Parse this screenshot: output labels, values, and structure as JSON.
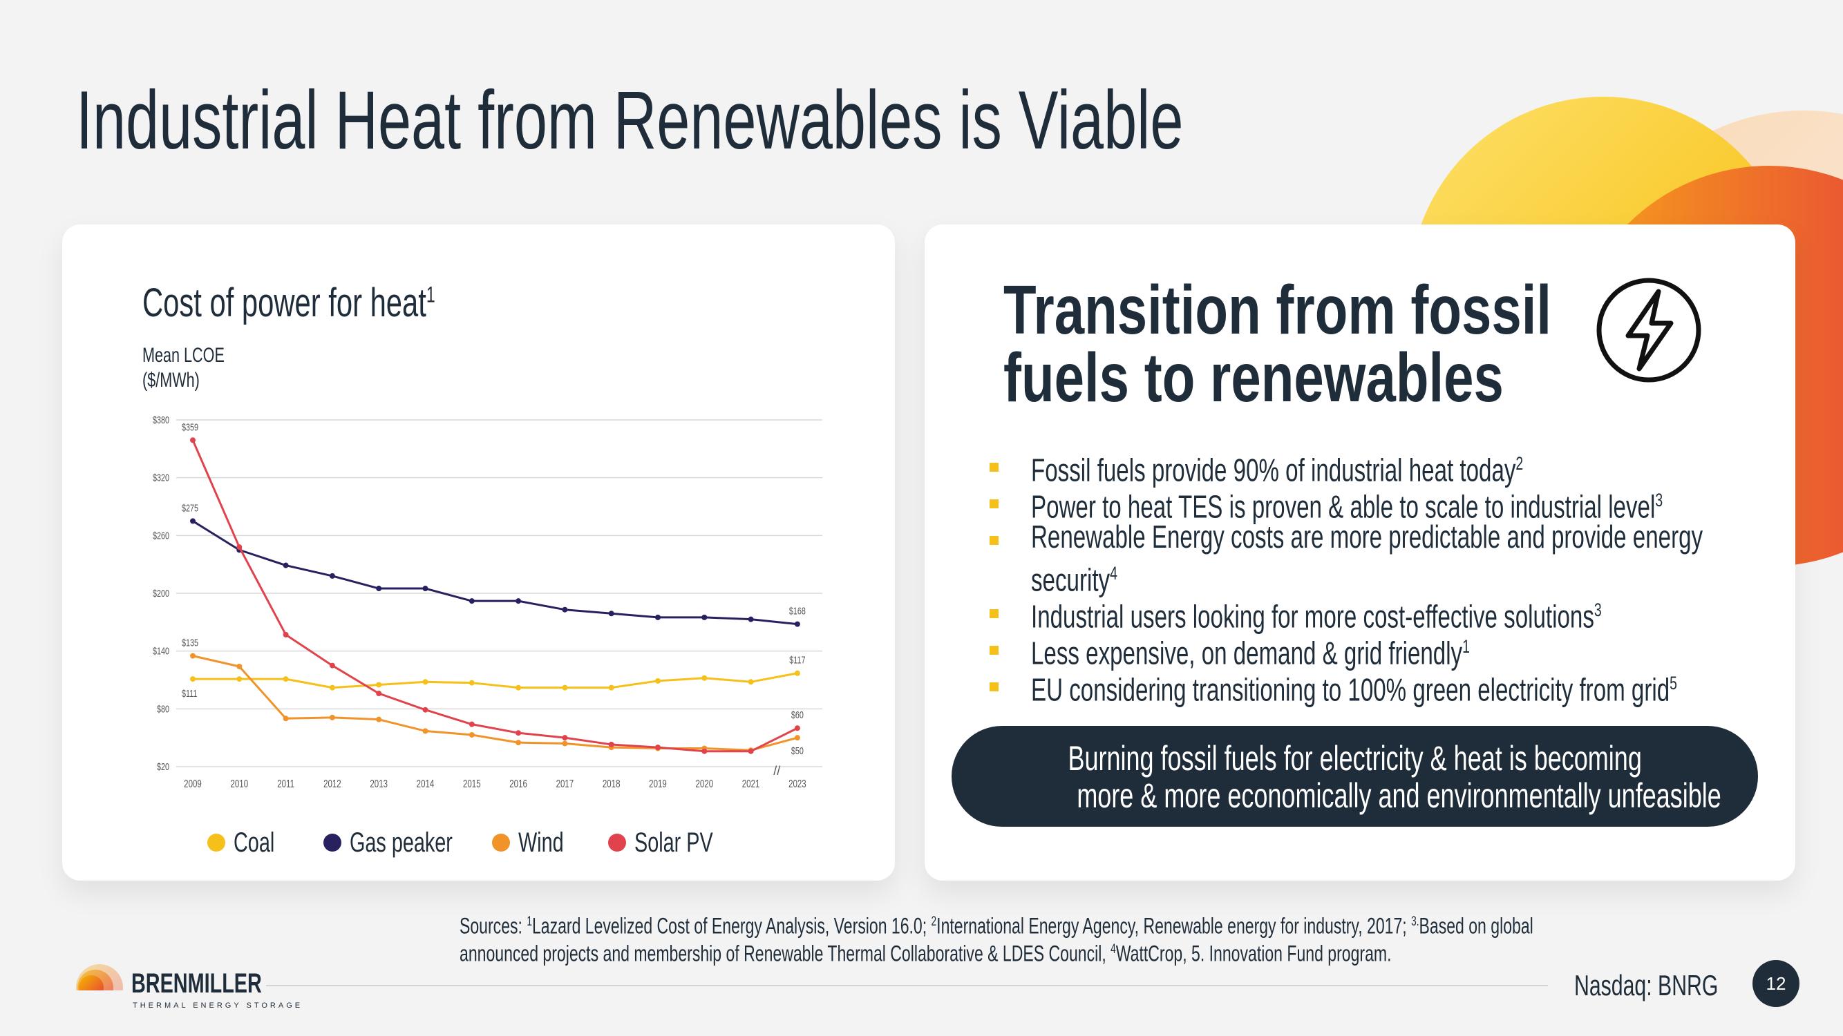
{
  "slide": {
    "title": "Industrial Heat from Renewables is Viable",
    "page_number": "12",
    "ticker": "Nasdaq: BNRG"
  },
  "left_card": {
    "chart_title": "Cost of power for heat",
    "chart_title_sup": "1",
    "ylabel_line1": "Mean LCOE",
    "ylabel_line2": "($/MWh)"
  },
  "chart_data": {
    "type": "line",
    "title": "Cost of power for heat",
    "ylabel": "Mean LCOE ($/MWh)",
    "xlabel": "",
    "ylim": [
      20,
      380
    ],
    "y_ticks": [
      "$380",
      "$320",
      "$260",
      "$200",
      "$140",
      "$80",
      "$20"
    ],
    "y_tick_values": [
      380,
      320,
      260,
      200,
      140,
      80,
      20
    ],
    "categories": [
      "2009",
      "2010",
      "2011",
      "2012",
      "2013",
      "2014",
      "2015",
      "2016",
      "2017",
      "2018",
      "2019",
      "2020",
      "2021",
      "2023"
    ],
    "axis_break_label": "//",
    "grid": true,
    "legend_position": "bottom",
    "series": [
      {
        "name": "Coal",
        "color": "#f5c01a",
        "values": [
          111,
          111,
          111,
          102,
          105,
          108,
          107,
          102,
          102,
          102,
          109,
          112,
          108,
          117
        ]
      },
      {
        "name": "Gas peaker",
        "color": "#27215f",
        "values": [
          275,
          245,
          229,
          218,
          205,
          205,
          192,
          192,
          183,
          179,
          175,
          175,
          173,
          168
        ]
      },
      {
        "name": "Wind",
        "color": "#f0932b",
        "values": [
          135,
          124,
          70,
          71,
          69,
          57,
          53,
          45,
          44,
          40,
          39,
          39,
          37,
          50
        ]
      },
      {
        "name": "Solar PV",
        "color": "#e0434b",
        "values": [
          359,
          248,
          157,
          125,
          96,
          79,
          64,
          55,
          50,
          43,
          40,
          36,
          36,
          60
        ]
      }
    ],
    "data_labels": [
      {
        "text": "$359",
        "series": "Solar PV",
        "category": "2009",
        "value": 359
      },
      {
        "text": "$275",
        "series": "Gas peaker",
        "category": "2009",
        "value": 275
      },
      {
        "text": "$135",
        "series": "Wind",
        "category": "2009",
        "value": 135
      },
      {
        "text": "$111",
        "series": "Coal",
        "category": "2009",
        "value": 111
      },
      {
        "text": "$168",
        "series": "Gas peaker",
        "category": "2023",
        "value": 168
      },
      {
        "text": "$117",
        "series": "Coal",
        "category": "2023",
        "value": 117
      },
      {
        "text": "$60",
        "series": "Solar PV",
        "category": "2023",
        "value": 60
      },
      {
        "text": "$50",
        "series": "Wind",
        "category": "2023",
        "value": 50
      }
    ]
  },
  "right_card": {
    "title_line1": "Transition from fossil",
    "title_line2": "fuels to renewables",
    "icon": "lightning-bolt-icon",
    "bullets": [
      {
        "lines": [
          "Fossil fuels provide 90% of industrial heat today"
        ],
        "sup": "2"
      },
      {
        "lines": [
          "Power to heat TES is proven & able to scale to industrial level"
        ],
        "sup": "3"
      },
      {
        "lines": [
          "Renewable Energy costs are more predictable and provide energy",
          "security"
        ],
        "sup": "4"
      },
      {
        "lines": [
          "Industrial users looking for more cost-effective solutions"
        ],
        "sup": "3"
      },
      {
        "lines": [
          "Less expensive, on demand & grid friendly"
        ],
        "sup": "1"
      },
      {
        "lines": [
          "EU considering transitioning to 100% green electricity from grid"
        ],
        "sup": "5"
      }
    ],
    "callout_line1": "Burning fossil fuels for electricity & heat is becoming",
    "callout_line2": "more & more economically and environmentally unfeasible"
  },
  "sources": {
    "prefix": "Sources: ",
    "s1_sup": "1",
    "s1": "Lazard Levelized Cost of Energy Analysis, Version 16.0; ",
    "s2_sup": "2",
    "s2": "International Energy Agency, Renewable energy for industry, 2017; ",
    "s3_sup": "3.",
    "s3": "Based on global",
    "line2a": "announced projects and membership of Renewable Thermal Collaborative & LDES Council, ",
    "s4_sup": "4",
    "line2b": "WattCrop, 5. Innovation Fund program."
  },
  "logo": {
    "name": "BRENMILLER",
    "tagline": "THERMAL ENERGY STORAGE"
  },
  "colors": {
    "navy": "#1f2d3a",
    "accent_yellow": "#f5c01a",
    "coal": "#f5c01a",
    "gas_peaker": "#27215f",
    "wind": "#f0932b",
    "solar_pv": "#e0434b"
  }
}
